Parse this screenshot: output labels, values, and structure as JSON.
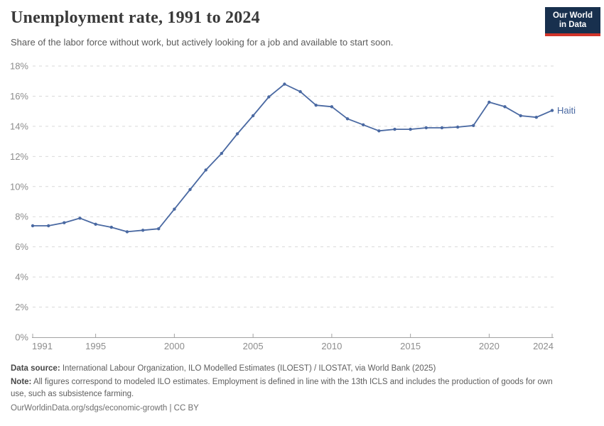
{
  "header": {
    "title": "Unemployment rate, 1991 to 2024",
    "subtitle": "Share of the labor force without work, but actively looking for a job and available to start soon.",
    "logo": {
      "line1": "Our World",
      "line2": "in Data"
    }
  },
  "chart_data": {
    "type": "line",
    "title": "Unemployment rate, 1991 to 2024",
    "xlabel": "",
    "ylabel": "",
    "xlim": [
      1991,
      2024
    ],
    "ylim": [
      0,
      18
    ],
    "grid": "horizontal-dashed",
    "legend_position": "end-of-line-label",
    "x_ticks": [
      1991,
      1995,
      2000,
      2005,
      2010,
      2015,
      2020,
      2024
    ],
    "y_ticks": [
      "0%",
      "2%",
      "4%",
      "6%",
      "8%",
      "10%",
      "12%",
      "14%",
      "16%",
      "18%"
    ],
    "series": [
      {
        "name": "Haiti",
        "color": "#4a69a2",
        "x": [
          1991,
          1992,
          1993,
          1994,
          1995,
          1996,
          1997,
          1998,
          1999,
          2000,
          2001,
          2002,
          2003,
          2004,
          2005,
          2006,
          2007,
          2008,
          2009,
          2010,
          2011,
          2012,
          2013,
          2014,
          2015,
          2016,
          2017,
          2018,
          2019,
          2020,
          2021,
          2022,
          2023,
          2024
        ],
        "values": [
          7.4,
          7.4,
          7.6,
          7.9,
          7.5,
          7.3,
          7.0,
          7.1,
          7.2,
          8.5,
          9.8,
          11.1,
          12.2,
          13.5,
          14.7,
          15.95,
          16.8,
          16.3,
          15.4,
          15.3,
          14.5,
          14.1,
          13.7,
          13.8,
          13.8,
          13.9,
          13.9,
          13.95,
          14.05,
          15.6,
          15.3,
          14.7,
          14.6,
          15.05
        ]
      }
    ]
  },
  "footer": {
    "datasource_label": "Data source:",
    "datasource_text": " International Labour Organization, ILO Modelled Estimates (ILOEST) / ILOSTAT, via World Bank (2025)",
    "note_label": "Note:",
    "note_text": " All figures correspond to modeled ILO estimates. Employment is defined in line with the 13th ICLS and includes the production of goods for own use, such as subsistence farming.",
    "link": "OurWorldinData.org/sdgs/economic-growth | CC BY"
  },
  "colors": {
    "line": "#4a69a2",
    "grid": "#d9d9d9",
    "axis": "#a3a3a3",
    "tick_text": "#8d8d8d",
    "title": "#3a3a3a",
    "subtitle": "#5a5a5a",
    "logo_bg": "#18304e",
    "logo_red": "#d1342a"
  }
}
